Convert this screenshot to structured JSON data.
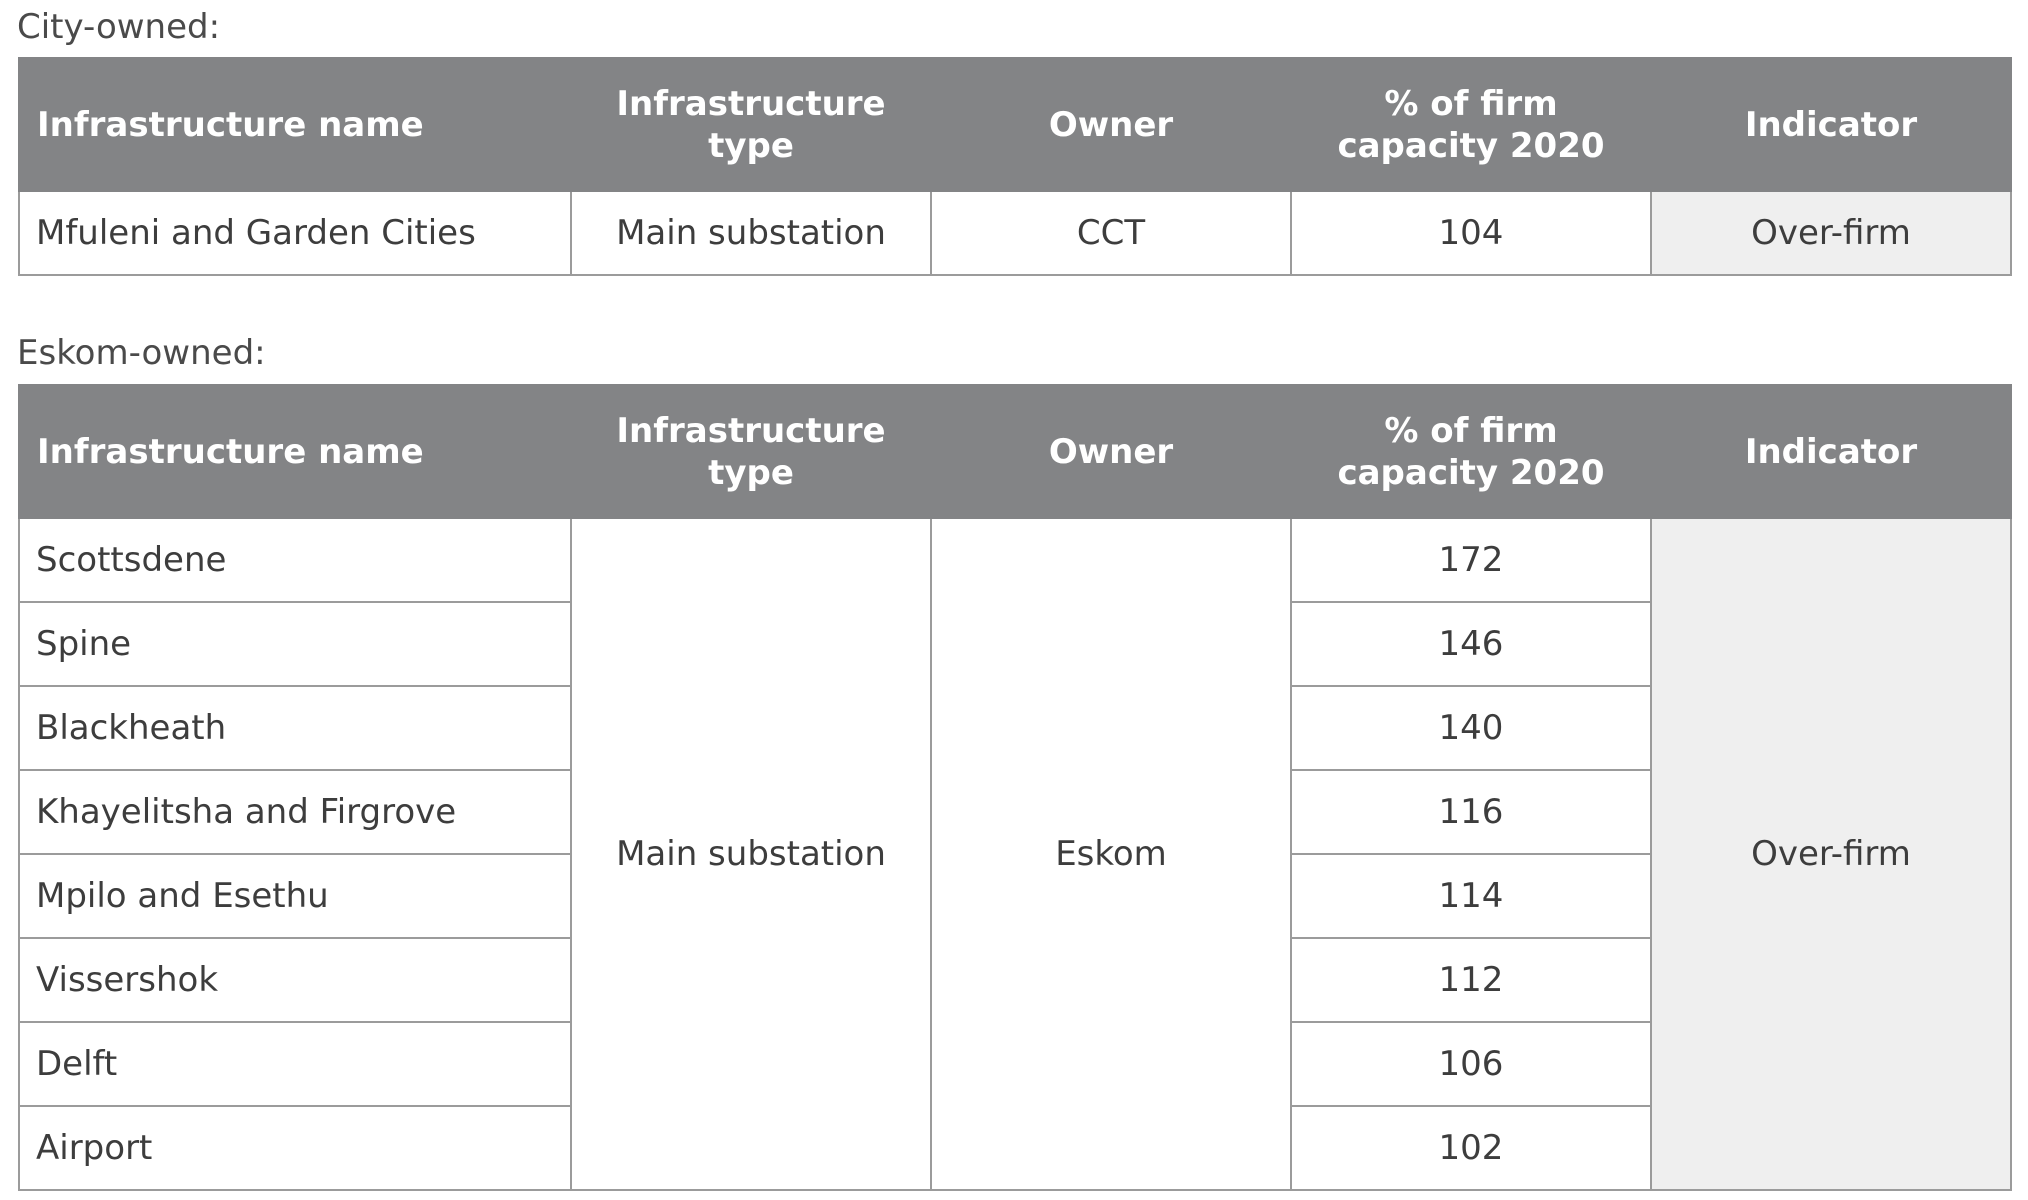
{
  "city_owned": {
    "caption": "City-owned:",
    "headers": {
      "name": "Infrastructure name",
      "type": "Infrastructure type",
      "owner": "Owner",
      "capacity": "% of firm capacity 2020",
      "indicator": "Indicator"
    },
    "rows": [
      {
        "name": "Mfuleni and Garden Cities",
        "type": "Main substation",
        "owner": "CCT",
        "capacity": "104",
        "indicator": "Over-firm"
      }
    ]
  },
  "eskom_owned": {
    "caption": "Eskom-owned:",
    "headers": {
      "name": "Infrastructure name",
      "type": "Infrastructure type",
      "owner": "Owner",
      "capacity": "% of firm capacity 2020",
      "indicator": "Indicator"
    },
    "shared_type": "Main substation",
    "shared_owner": "Eskom",
    "shared_indicator": "Over-firm",
    "rows": [
      {
        "name": "Scottsdene",
        "capacity": "172"
      },
      {
        "name": "Spine",
        "capacity": "146"
      },
      {
        "name": "Blackheath",
        "capacity": "140"
      },
      {
        "name": "Khayelitsha and Firgrove",
        "capacity": "116"
      },
      {
        "name": "Mpilo and Esethu",
        "capacity": "114"
      },
      {
        "name": "Vissershok",
        "capacity": "112"
      },
      {
        "name": "Delft",
        "capacity": "106"
      },
      {
        "name": "Airport",
        "capacity": "102"
      }
    ]
  },
  "colors": {
    "header_background": "#838486",
    "header_text": "#ffffff",
    "indicator_background": "#efefef",
    "border": "#9b9b9b"
  }
}
